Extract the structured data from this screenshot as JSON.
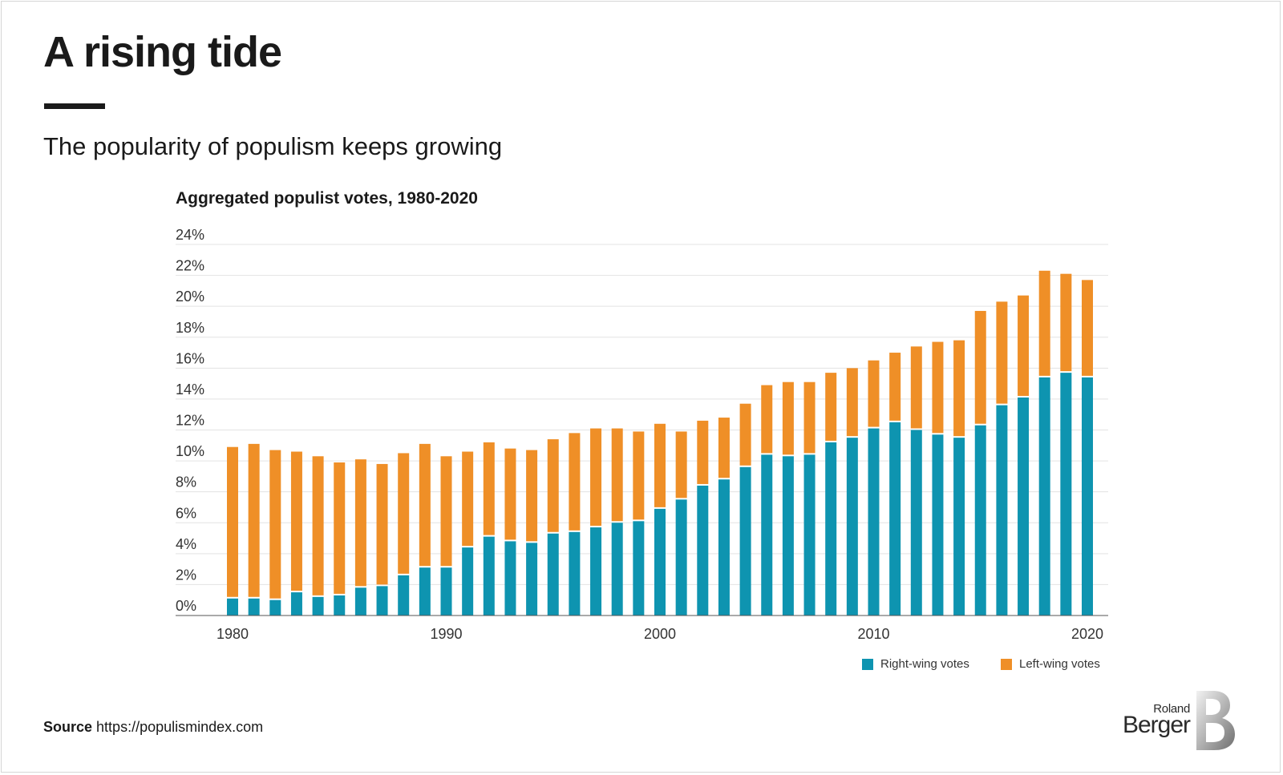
{
  "header": {
    "title": "A rising tide",
    "subtitle": "The popularity of populism keeps growing"
  },
  "chart_data": {
    "type": "bar",
    "stacked": true,
    "title": "Aggregated populist votes, 1980-2020",
    "x": [
      1980,
      1981,
      1982,
      1983,
      1984,
      1985,
      1986,
      1987,
      1988,
      1989,
      1990,
      1991,
      1992,
      1993,
      1994,
      1995,
      1996,
      1997,
      1998,
      1999,
      2000,
      2001,
      2002,
      2003,
      2004,
      2005,
      2006,
      2007,
      2008,
      2009,
      2010,
      2011,
      2012,
      2013,
      2014,
      2015,
      2016,
      2017,
      2018,
      2019,
      2020
    ],
    "series": [
      {
        "name": "Right-wing votes",
        "color": "#0e94b0",
        "values": [
          1.1,
          1.1,
          1.0,
          1.5,
          1.2,
          1.3,
          1.8,
          1.9,
          2.6,
          3.1,
          3.1,
          4.4,
          5.1,
          4.8,
          4.7,
          5.3,
          5.4,
          5.7,
          6.0,
          6.1,
          6.9,
          7.5,
          8.4,
          8.8,
          9.6,
          10.4,
          10.3,
          10.4,
          11.2,
          11.5,
          12.1,
          12.5,
          12.0,
          11.7,
          11.5,
          12.3,
          13.6,
          14.1,
          15.4,
          15.7,
          15.4
        ]
      },
      {
        "name": "Left-wing votes",
        "color": "#ef8f27",
        "values": [
          9.8,
          10.0,
          9.7,
          9.1,
          9.1,
          8.6,
          8.3,
          7.9,
          7.9,
          8.0,
          7.2,
          6.2,
          6.1,
          6.0,
          6.0,
          6.1,
          6.4,
          6.4,
          6.1,
          5.8,
          5.5,
          4.4,
          4.2,
          4.0,
          4.1,
          4.5,
          4.8,
          4.7,
          4.5,
          4.5,
          4.4,
          4.5,
          5.4,
          6.0,
          6.3,
          7.4,
          6.7,
          6.6,
          6.9,
          6.4,
          6.3
        ]
      }
    ],
    "xlabel": "",
    "ylabel": "",
    "ylim": [
      0,
      24
    ],
    "y_ticks": [
      "0%",
      "2%",
      "4%",
      "6%",
      "8%",
      "10%",
      "12%",
      "14%",
      "16%",
      "18%",
      "20%",
      "22%",
      "24%"
    ],
    "x_ticks": [
      "1980",
      "1990",
      "2000",
      "2010",
      "2020"
    ],
    "grid": true,
    "legend": "bottom-right"
  },
  "legend": {
    "right_label": "Right-wing votes",
    "left_label": "Left-wing votes"
  },
  "footer": {
    "source_label": "Source",
    "source_text": "https://populismindex.com",
    "logo_small": "Roland",
    "logo_big": "Berger"
  },
  "colors": {
    "right": "#0e94b0",
    "left": "#ef8f27",
    "grid": "#e3e3e3",
    "axis": "#555555"
  }
}
